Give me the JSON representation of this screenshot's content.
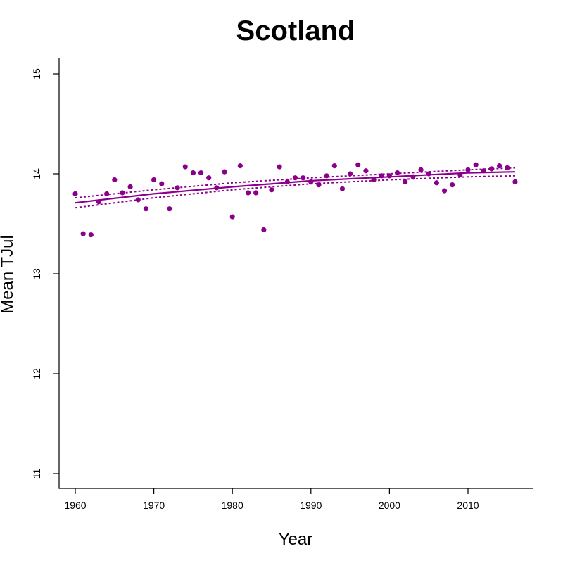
{
  "chart_data": {
    "type": "scatter",
    "title": "Scotland",
    "xlabel": "Year",
    "ylabel": "Mean TJul",
    "xlim": [
      1960,
      2016
    ],
    "ylim": [
      11,
      15
    ],
    "xticks": [
      1960,
      1970,
      1980,
      1990,
      2000,
      2010
    ],
    "yticks": [
      11,
      12,
      13,
      14,
      15
    ],
    "grid": false,
    "legend": "none",
    "colors": {
      "series": "#8b008b",
      "axis": "#000000"
    },
    "points": {
      "x": [
        1960,
        1961,
        1962,
        1963,
        1964,
        1965,
        1966,
        1967,
        1968,
        1969,
        1970,
        1971,
        1972,
        1973,
        1974,
        1975,
        1976,
        1977,
        1978,
        1979,
        1980,
        1981,
        1982,
        1983,
        1984,
        1985,
        1986,
        1987,
        1988,
        1989,
        1990,
        1991,
        1992,
        1993,
        1994,
        1995,
        1996,
        1997,
        1998,
        1999,
        2000,
        2001,
        2002,
        2003,
        2004,
        2005,
        2006,
        2007,
        2008,
        2009,
        2010,
        2011,
        2012,
        2013,
        2014,
        2015,
        2016
      ],
      "y": [
        13.8,
        13.4,
        13.39,
        13.72,
        13.8,
        13.94,
        13.81,
        13.87,
        13.74,
        13.65,
        13.94,
        13.9,
        13.65,
        13.86,
        14.07,
        14.01,
        14.01,
        13.96,
        13.86,
        14.02,
        13.57,
        14.08,
        13.81,
        13.81,
        13.44,
        13.84,
        14.07,
        13.92,
        13.96,
        13.96,
        13.92,
        13.89,
        13.98,
        14.08,
        13.85,
        14.0,
        14.09,
        14.03,
        13.94,
        13.98,
        13.98,
        14.01,
        13.92,
        13.97,
        14.04,
        14.0,
        13.91,
        13.83,
        13.89,
        13.99,
        14.04,
        14.09,
        14.03,
        14.05,
        14.08,
        14.06,
        13.92
      ]
    },
    "trend": {
      "x": [
        1960,
        1970,
        1980,
        1990,
        2000,
        2010,
        2016
      ],
      "fit": [
        13.71,
        13.8,
        13.87,
        13.93,
        13.97,
        14.01,
        14.02
      ],
      "upper": [
        13.76,
        13.84,
        13.91,
        13.96,
        14.0,
        14.04,
        14.06
      ],
      "lower": [
        13.66,
        13.76,
        13.84,
        13.9,
        13.94,
        13.97,
        13.98
      ]
    }
  }
}
